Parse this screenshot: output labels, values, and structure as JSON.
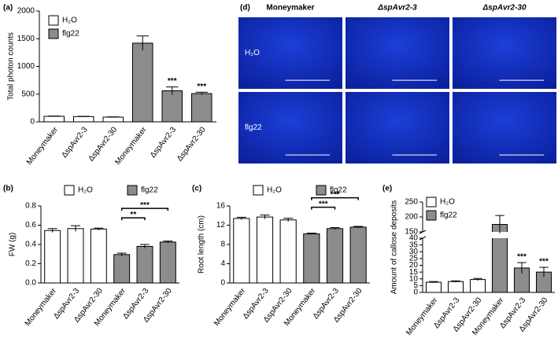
{
  "chart_data": [
    {
      "type": "bar",
      "panel_label": "(a)",
      "ylabel": "Total photon counts",
      "categories": [
        "Moneymaker",
        "ΔspAvr2-3",
        "ΔspAvr2-30",
        "Moneymaker",
        "ΔspAvr2-3",
        "ΔspAvr2-30"
      ],
      "series": [
        {
          "name": "H₂O",
          "color": "#ffffff",
          "values": [
            100,
            95,
            85,
            null,
            null,
            null
          ],
          "errors": [
            5,
            5,
            5,
            null,
            null,
            null
          ]
        },
        {
          "name": "flg22",
          "color": "#8c8c8c",
          "values": [
            null,
            null,
            null,
            1420,
            560,
            510
          ],
          "errors": [
            null,
            null,
            null,
            130,
            70,
            25
          ],
          "significance": [
            null,
            null,
            null,
            null,
            "***",
            "***"
          ]
        }
      ],
      "ylim": [
        0,
        2000
      ],
      "yticks": [
        0,
        500,
        1000,
        1500,
        2000
      ],
      "legend": "upper-left"
    },
    {
      "type": "image-grid",
      "panel_label": "(d)",
      "columns": [
        "Moneymaker",
        "ΔspAvr2-3",
        "ΔspAvr2-30"
      ],
      "rows": [
        "H₂O",
        "flg22"
      ]
    },
    {
      "type": "bar",
      "panel_label": "(b)",
      "ylabel": "FW (g)",
      "categories": [
        "Moneymaker",
        "ΔspAvr2-3",
        "ΔspAvr2-30",
        "Moneymaker",
        "ΔspAvr2-3",
        "ΔspAvr2-30"
      ],
      "series": [
        {
          "name": "H₂O",
          "color": "#ffffff",
          "values": [
            0.545,
            0.565,
            0.56,
            null,
            null,
            null
          ],
          "errors": [
            0.02,
            0.03,
            0.01,
            null,
            null,
            null
          ]
        },
        {
          "name": "flg22",
          "color": "#8c8c8c",
          "values": [
            null,
            null,
            null,
            0.295,
            0.38,
            0.425
          ],
          "errors": [
            null,
            null,
            null,
            0.015,
            0.02,
            0.01
          ]
        }
      ],
      "brackets": [
        {
          "label": "**",
          "categories": [
            3,
            4
          ]
        },
        {
          "label": "***",
          "categories": [
            3,
            5
          ]
        }
      ],
      "ylim": [
        0,
        0.8
      ],
      "yticks": [
        {
          "value": 0,
          "label": "0.0"
        },
        0.2,
        0.4,
        0.6,
        0.8
      ],
      "legend": "top"
    },
    {
      "type": "bar",
      "panel_label": "(c)",
      "ylabel": "Root length (cm)",
      "categories": [
        "Moneymaker",
        "ΔspAvr2-3",
        "ΔspAvr2-30",
        "Moneymaker",
        "ΔspAvr2-3",
        "ΔspAvr2-30"
      ],
      "series": [
        {
          "name": "H₂O",
          "color": "#ffffff",
          "values": [
            13.4,
            13.7,
            13.1,
            null,
            null,
            null
          ],
          "errors": [
            0.25,
            0.4,
            0.35,
            null,
            null,
            null
          ]
        },
        {
          "name": "flg22",
          "color": "#8c8c8c",
          "values": [
            null,
            null,
            null,
            10.2,
            11.3,
            11.6
          ],
          "errors": [
            null,
            null,
            null,
            0.15,
            0.2,
            0.15
          ]
        }
      ],
      "brackets": [
        {
          "label": "***",
          "categories": [
            3,
            4
          ]
        },
        {
          "label": "***",
          "categories": [
            3,
            5
          ]
        }
      ],
      "ylim": [
        0,
        16
      ],
      "yticks": [
        0,
        4,
        8,
        12,
        16
      ],
      "legend": "top"
    },
    {
      "type": "bar",
      "panel_label": "(e)",
      "ylabel": "Amount of callose deposits",
      "categories": [
        "Moneymaker",
        "ΔspAvr2-3",
        "ΔspAvr2-30",
        "Moneymaker",
        "ΔspAvr2-3",
        "ΔspAvr2-30"
      ],
      "series": [
        {
          "name": "H₂O",
          "color": "#ffffff",
          "values": [
            7.5,
            8,
            9.5,
            null,
            null,
            null
          ],
          "errors": [
            0.5,
            0.5,
            0.8,
            null,
            null,
            null
          ]
        },
        {
          "name": "flg22",
          "color": "#8c8c8c",
          "values": [
            null,
            null,
            null,
            175,
            18,
            15
          ],
          "errors": [
            null,
            null,
            null,
            30,
            4,
            3.5
          ],
          "significance": [
            null,
            null,
            null,
            null,
            "***",
            "***"
          ]
        }
      ],
      "ylim": [
        0,
        250
      ],
      "axis_break": [
        40,
        150
      ],
      "yticks": [
        0,
        5,
        10,
        15,
        20,
        25,
        30,
        35,
        40,
        150,
        200,
        250
      ],
      "legend": "upper-left"
    }
  ]
}
